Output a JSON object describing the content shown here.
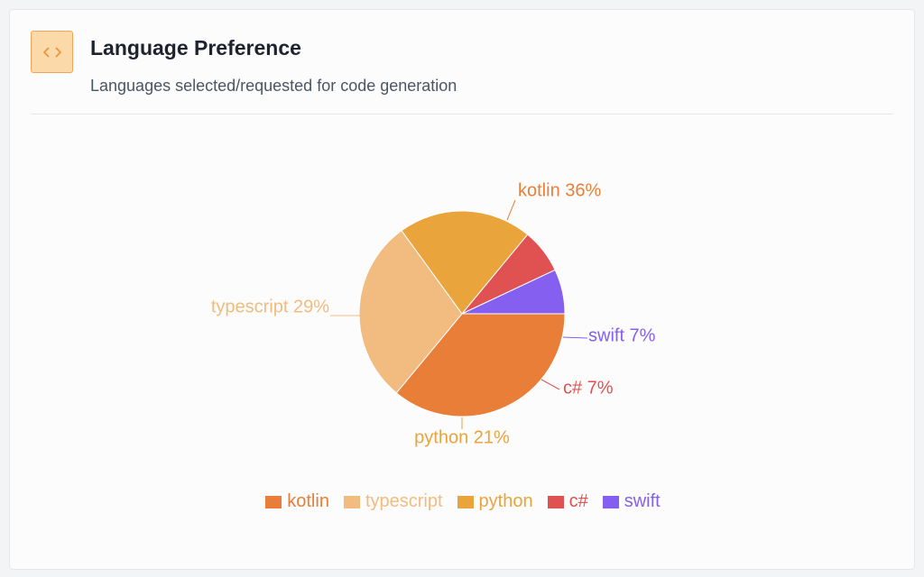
{
  "card": {
    "title": "Language Preference",
    "subtitle": "Languages selected/requested for code generation",
    "icon": "code-icon",
    "accent": "#f0a455"
  },
  "chart_data": {
    "type": "pie",
    "title": "",
    "slices": [
      {
        "label": "kotlin",
        "value": 36,
        "display": "kotlin 36%",
        "color": "#e87e38"
      },
      {
        "label": "typescript",
        "value": 29,
        "display": "typescript 29%",
        "color": "#f2bb7f"
      },
      {
        "label": "python",
        "value": 21,
        "display": "python 21%",
        "color": "#e9a43c"
      },
      {
        "label": "c#",
        "value": 7,
        "display": "c# 7%",
        "color": "#e05252"
      },
      {
        "label": "swift",
        "value": 7,
        "display": "swift 7%",
        "color": "#8560f0"
      }
    ],
    "legend_position": "bottom"
  }
}
